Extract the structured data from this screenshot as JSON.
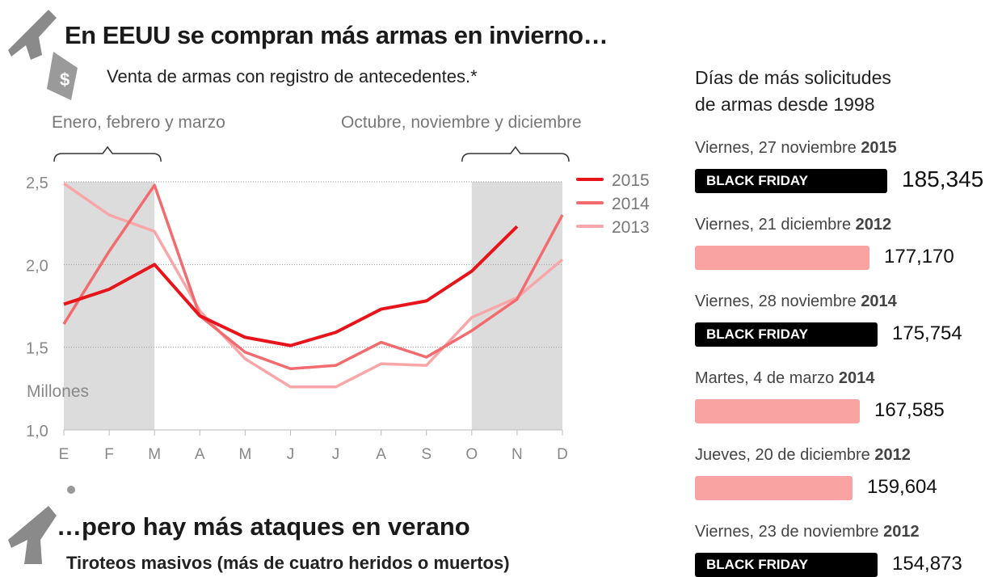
{
  "header": {
    "title": "En EEUU se compran más armas en invierno…",
    "subtitle": "Venta de armas con registro de antecedentes.*"
  },
  "periods": {
    "winter": "Enero, febrero y marzo",
    "autumn": "Octubre, noviembre y diciembre"
  },
  "chart_data": {
    "type": "line",
    "ylabel": "Millones",
    "ylim": [
      1.0,
      2.5
    ],
    "yticks": [
      "1,0",
      "1,5",
      "2,0",
      "2,5"
    ],
    "categories": [
      "E",
      "F",
      "M",
      "A",
      "M",
      "J",
      "J",
      "A",
      "S",
      "O",
      "N",
      "D"
    ],
    "shaded_months": [
      "E",
      "F",
      "M",
      "O",
      "N",
      "D"
    ],
    "grid": true,
    "legend": "top-right",
    "series": [
      {
        "name": "2015",
        "color": "#e8141b",
        "values": [
          1.76,
          1.85,
          2.0,
          1.69,
          1.56,
          1.51,
          1.59,
          1.73,
          1.78,
          1.96,
          2.23,
          null
        ]
      },
      {
        "name": "2014",
        "color": "#f26b6e",
        "values": [
          1.64,
          2.08,
          2.48,
          1.69,
          1.47,
          1.37,
          1.39,
          1.53,
          1.44,
          1.6,
          1.79,
          2.3
        ]
      },
      {
        "name": "2013",
        "color": "#f9a6a8",
        "values": [
          2.49,
          2.3,
          2.2,
          1.72,
          1.43,
          1.26,
          1.26,
          1.4,
          1.39,
          1.68,
          1.8,
          2.03
        ]
      }
    ]
  },
  "sidebar": {
    "title_line1": "Días  de más solicitudes",
    "title_line2": "de armas desde 1998",
    "records": [
      {
        "date": "Viernes, 27 noviembre ",
        "year": "2015",
        "label": "BLACK FRIDAY",
        "value": "185,345",
        "num": 185345,
        "black": true
      },
      {
        "date": "Viernes, 21 diciembre ",
        "year": "2012",
        "label": "",
        "value": "177,170",
        "num": 177170,
        "black": false
      },
      {
        "date": "Viernes, 28 noviembre ",
        "year": "2014",
        "label": "BLACK FRIDAY",
        "value": "175,754",
        "num": 175754,
        "black": true
      },
      {
        "date": "Martes, 4 de marzo ",
        "year": "2014",
        "label": "",
        "value": "167,585",
        "num": 167585,
        "black": false
      },
      {
        "date": "Jueves, 20 de diciembre ",
        "year": "2012",
        "label": "",
        "value": "159,604",
        "num": 159604,
        "black": false
      },
      {
        "date": "Viernes, 23 de noviembre ",
        "year": "2012",
        "label": "BLACK FRIDAY",
        "value": "154,873",
        "num": 154873,
        "black": true
      }
    ]
  },
  "section2": {
    "title": "…pero hay más ataques en verano",
    "subtitle": "Tiroteos masivos (más de cuatro heridos o muertos)"
  }
}
